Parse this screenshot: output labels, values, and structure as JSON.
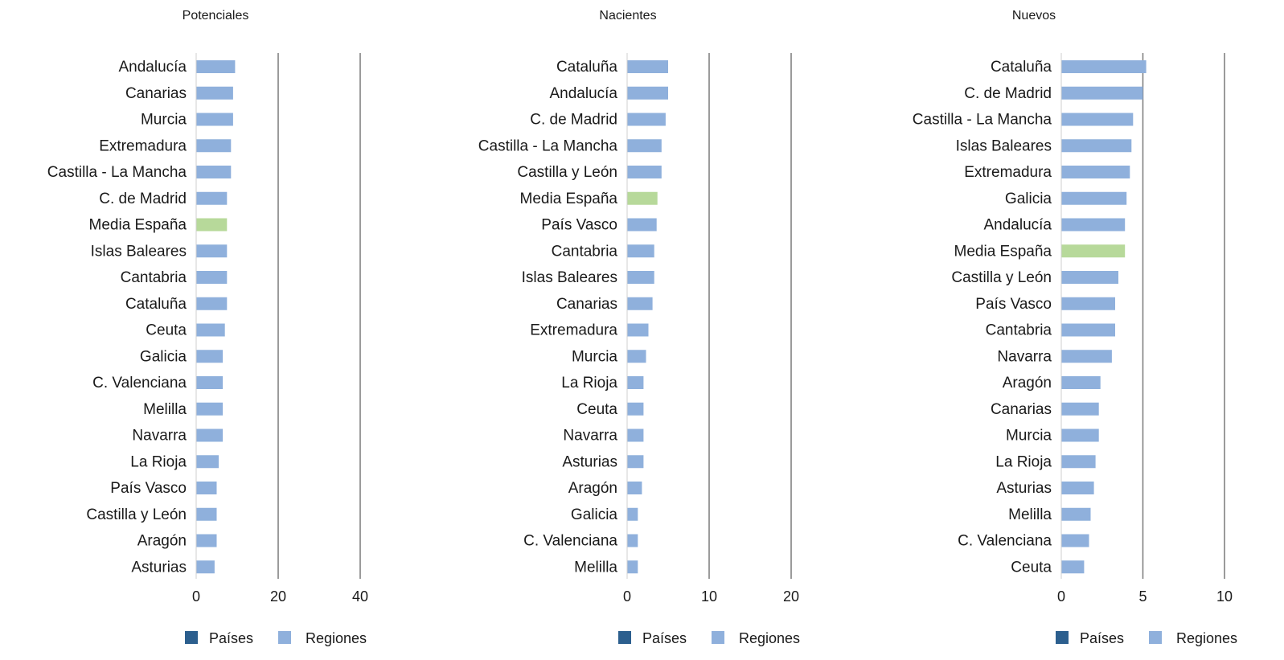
{
  "palette": {
    "countries": "#2c5f8e",
    "regions": "#8fb0dc",
    "average": "#b7d99a",
    "gridline": "#7a7a7a"
  },
  "chart_data": [
    {
      "type": "bar",
      "orientation": "horizontal",
      "title": "Potenciales",
      "categories": [
        "Andalucía",
        "Canarias",
        "Murcia",
        "Extremadura",
        "Castilla - La Mancha",
        "C. de Madrid",
        "Media España",
        "Islas Baleares",
        "Cantabria",
        "Cataluña",
        "Ceuta",
        "Galicia",
        "C. Valenciana",
        "Melilla",
        "Navarra",
        "La Rioja",
        "País Vasco",
        "Castilla y León",
        "Aragón",
        "Asturias"
      ],
      "values": [
        9.5,
        9.0,
        9.0,
        8.5,
        8.5,
        7.5,
        7.5,
        7.5,
        7.5,
        7.5,
        7.0,
        6.5,
        6.5,
        6.5,
        6.5,
        5.5,
        5.0,
        5.0,
        5.0,
        4.5
      ],
      "highlight": "Media España",
      "xlim": [
        0,
        40
      ],
      "xticks": [
        0,
        20,
        40
      ],
      "grid": true,
      "legend": {
        "position": "bottom",
        "items": [
          "Países",
          "Regiones"
        ]
      }
    },
    {
      "type": "bar",
      "orientation": "horizontal",
      "title": "Nacientes",
      "categories": [
        "Cataluña",
        "Andalucía",
        "C. de Madrid",
        "Castilla - La Mancha",
        "Castilla y León",
        "Media España",
        "País Vasco",
        "Cantabria",
        "Islas Baleares",
        "Canarias",
        "Extremadura",
        "Murcia",
        "La Rioja",
        "Ceuta",
        "Navarra",
        "Asturias",
        "Aragón",
        "Galicia",
        "C. Valenciana",
        "Melilla"
      ],
      "values": [
        5.0,
        5.0,
        4.7,
        4.2,
        4.2,
        3.7,
        3.6,
        3.3,
        3.3,
        3.1,
        2.6,
        2.3,
        2.0,
        2.0,
        2.0,
        2.0,
        1.8,
        1.3,
        1.3,
        1.3
      ],
      "highlight": "Media España",
      "xlim": [
        0,
        20
      ],
      "xticks": [
        0,
        10,
        20
      ],
      "grid": true,
      "legend": {
        "position": "bottom",
        "items": [
          "Países",
          "Regiones"
        ]
      }
    },
    {
      "type": "bar",
      "orientation": "horizontal",
      "title": "Nuevos",
      "categories": [
        "Cataluña",
        "C. de Madrid",
        "Castilla - La Mancha",
        "Islas Baleares",
        "Extremadura",
        "Galicia",
        "Andalucía",
        "Media España",
        "Castilla y León",
        "País Vasco",
        "Cantabria",
        "Navarra",
        "Aragón",
        "Canarias",
        "Murcia",
        "La Rioja",
        "Asturias",
        "Melilla",
        "C. Valenciana",
        "Ceuta"
      ],
      "values": [
        5.2,
        5.0,
        4.4,
        4.3,
        4.2,
        4.0,
        3.9,
        3.9,
        3.5,
        3.3,
        3.3,
        3.1,
        2.4,
        2.3,
        2.3,
        2.1,
        2.0,
        1.8,
        1.7,
        1.4
      ],
      "highlight": "Media España",
      "xlim": [
        0,
        10
      ],
      "xticks": [
        0,
        5,
        10
      ],
      "grid": true,
      "legend": {
        "position": "bottom",
        "items": [
          "Países",
          "Regiones"
        ]
      }
    }
  ]
}
